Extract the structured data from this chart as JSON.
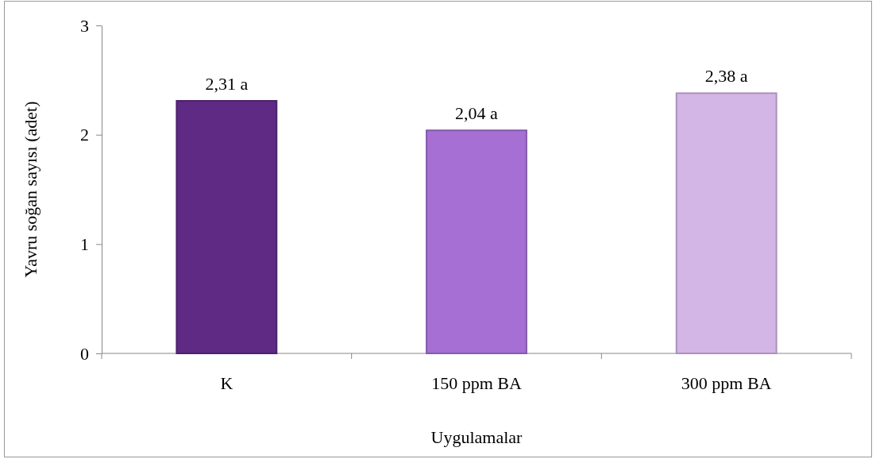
{
  "chart_data": {
    "type": "bar",
    "xlabel": "Uygulamalar",
    "ylabel": "Yavru soğan sayısı (adet)",
    "categories": [
      "K",
      "150 ppm BA",
      "300 ppm BA"
    ],
    "values": [
      2.31,
      2.04,
      2.38
    ],
    "colors": [
      "#5e2a84",
      "#a56fd4",
      "#d3b5e6"
    ],
    "value_labels": [
      "2,31 a",
      "2,04 a",
      "2,38 a"
    ],
    "ylim": [
      0,
      3
    ],
    "yticks": [
      0,
      1,
      2,
      3
    ]
  }
}
